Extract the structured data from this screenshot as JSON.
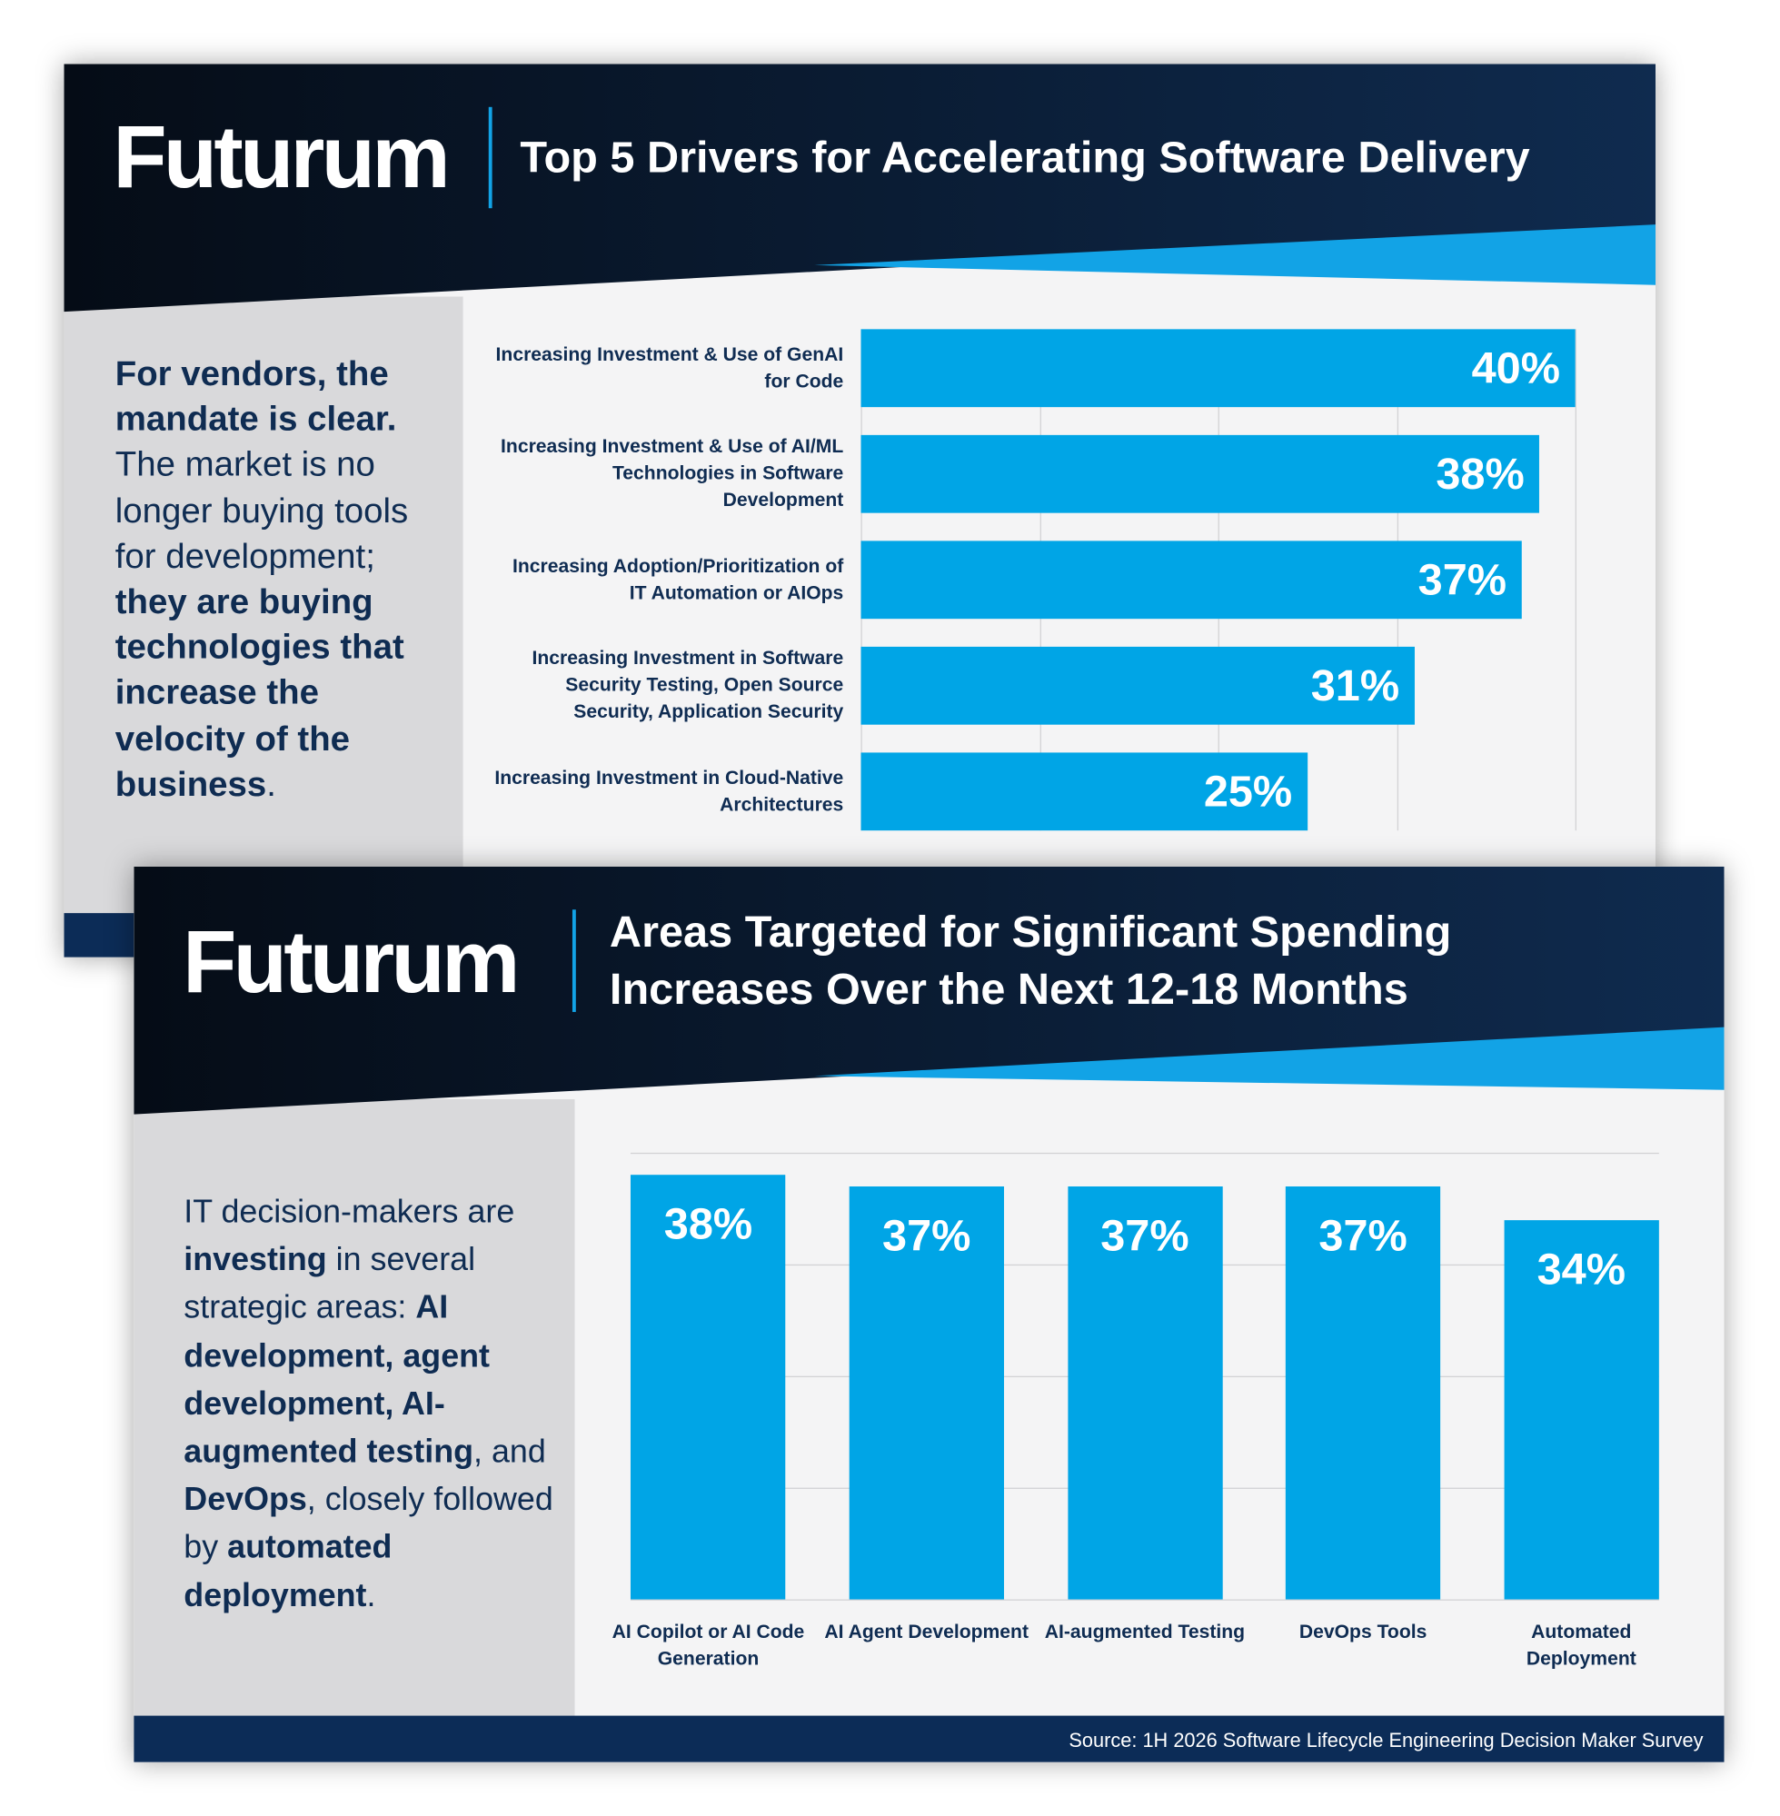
{
  "panels": [
    {
      "brand": "Futurum",
      "sidebar": [
        {
          "text": "For vendors, the mandate is clear.",
          "bold": true
        },
        {
          "text": " The market is no longer buying tools for development; ",
          "bold": false
        },
        {
          "text": "they are buying technologies that increase the velocity of the business",
          "bold": true
        },
        {
          "text": ".",
          "bold": false
        }
      ]
    },
    {
      "brand": "Futurum",
      "sidebar": [
        {
          "text": "IT decision-makers are ",
          "bold": false
        },
        {
          "text": "investing",
          "bold": true
        },
        {
          "text": " in several strategic areas: ",
          "bold": false
        },
        {
          "text": "AI development, agent development, AI-augmented testing",
          "bold": true
        },
        {
          "text": ", and ",
          "bold": false
        },
        {
          "text": "DevOps",
          "bold": true
        },
        {
          "text": ", closely followed by ",
          "bold": false
        },
        {
          "text": "automated deployment",
          "bold": true
        },
        {
          "text": ".",
          "bold": false
        }
      ]
    }
  ],
  "chart_data": [
    {
      "type": "bar",
      "horizontal": true,
      "title": "Top 5 Drivers for Accelerating Software Delivery",
      "categories": [
        "Increasing Investment & Use of GenAI for Code",
        "Increasing Investment & Use of AI/ML Technologies in Software Development",
        "Increasing Adoption/Prioritization of IT Automation or AIOps",
        "Increasing Investment in Software Security Testing, Open Source Security, Application Security",
        "Increasing Investment in Cloud-Native Architectures"
      ],
      "values": [
        40,
        38,
        37,
        31,
        25
      ],
      "value_labels": [
        "40%",
        "38%",
        "37%",
        "31%",
        "25%"
      ],
      "color": "#00a5e6",
      "xlim": [
        0,
        40
      ],
      "xticks": [
        0,
        10,
        20,
        30,
        40
      ],
      "grid": true
    },
    {
      "type": "bar",
      "horizontal": false,
      "title": "Areas Targeted for Significant Spending Increases Over the Next 12-18 Months",
      "categories": [
        "AI Copilot or AI Code Generation",
        "AI Agent Development",
        "AI-augmented Testing",
        "DevOps Tools",
        "Automated Deployment"
      ],
      "values": [
        38,
        37,
        37,
        37,
        34
      ],
      "value_labels": [
        "38%",
        "37%",
        "37%",
        "37%",
        "34%"
      ],
      "color": "#00a5e6",
      "ylim": [
        0,
        40
      ],
      "yticks": [
        0,
        10,
        20,
        30,
        40
      ],
      "grid": true
    }
  ],
  "source": "Source: 1H 2026 Software Lifecycle Engineering Decision Maker Survey"
}
